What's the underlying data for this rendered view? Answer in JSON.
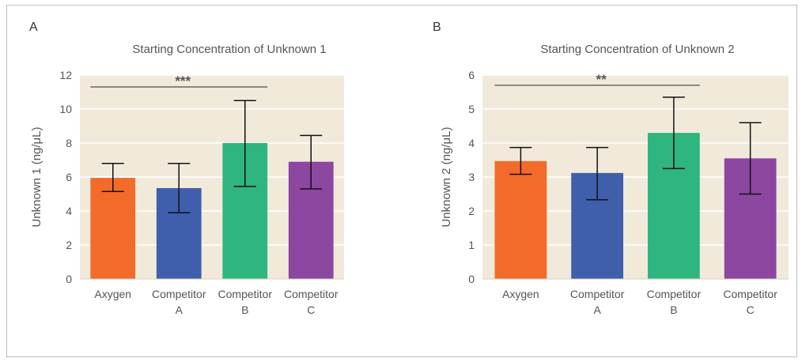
{
  "chart_data": [
    {
      "panel": "A",
      "type": "bar",
      "title": "Starting Concentration of Unknown 1",
      "ylabel": "Unknown 1  (ng/μL)",
      "xlabel": "",
      "ylim": [
        0,
        12
      ],
      "yticks": [
        0,
        2,
        4,
        6,
        8,
        10,
        12
      ],
      "grid": true,
      "categories": [
        [
          "Axygen"
        ],
        [
          "Competitor",
          "A"
        ],
        [
          "Competitor",
          "B"
        ],
        [
          "Competitor",
          "C"
        ]
      ],
      "values": [
        5.95,
        5.35,
        8.0,
        6.9
      ],
      "error_low": [
        5.15,
        3.9,
        5.45,
        5.3
      ],
      "error_high": [
        6.8,
        6.8,
        10.5,
        8.45
      ],
      "colors": [
        "#f26b2a",
        "#3f5fad",
        "#2fb57f",
        "#8c47a0"
      ],
      "significance": {
        "from": 0,
        "to": 2,
        "y": 11.3,
        "label": "***"
      }
    },
    {
      "panel": "B",
      "type": "bar",
      "title": "Starting Concentration of Unknown 2",
      "ylabel": "Unknown 2  (ng/μL)",
      "xlabel": "",
      "ylim": [
        0,
        6
      ],
      "yticks": [
        0,
        1,
        2,
        3,
        4,
        5,
        6
      ],
      "grid": true,
      "categories": [
        [
          "Axygen"
        ],
        [
          "Competitor",
          "A"
        ],
        [
          "Competitor",
          "B"
        ],
        [
          "Competitor",
          "C"
        ]
      ],
      "values": [
        3.47,
        3.12,
        4.3,
        3.55
      ],
      "error_low": [
        3.08,
        2.33,
        3.25,
        2.5
      ],
      "error_high": [
        3.87,
        3.87,
        5.35,
        4.6
      ],
      "colors": [
        "#f26b2a",
        "#3f5fad",
        "#2fb57f",
        "#8c47a0"
      ],
      "significance": {
        "from": 0,
        "to": 2,
        "y": 5.7,
        "label": "**"
      }
    }
  ]
}
